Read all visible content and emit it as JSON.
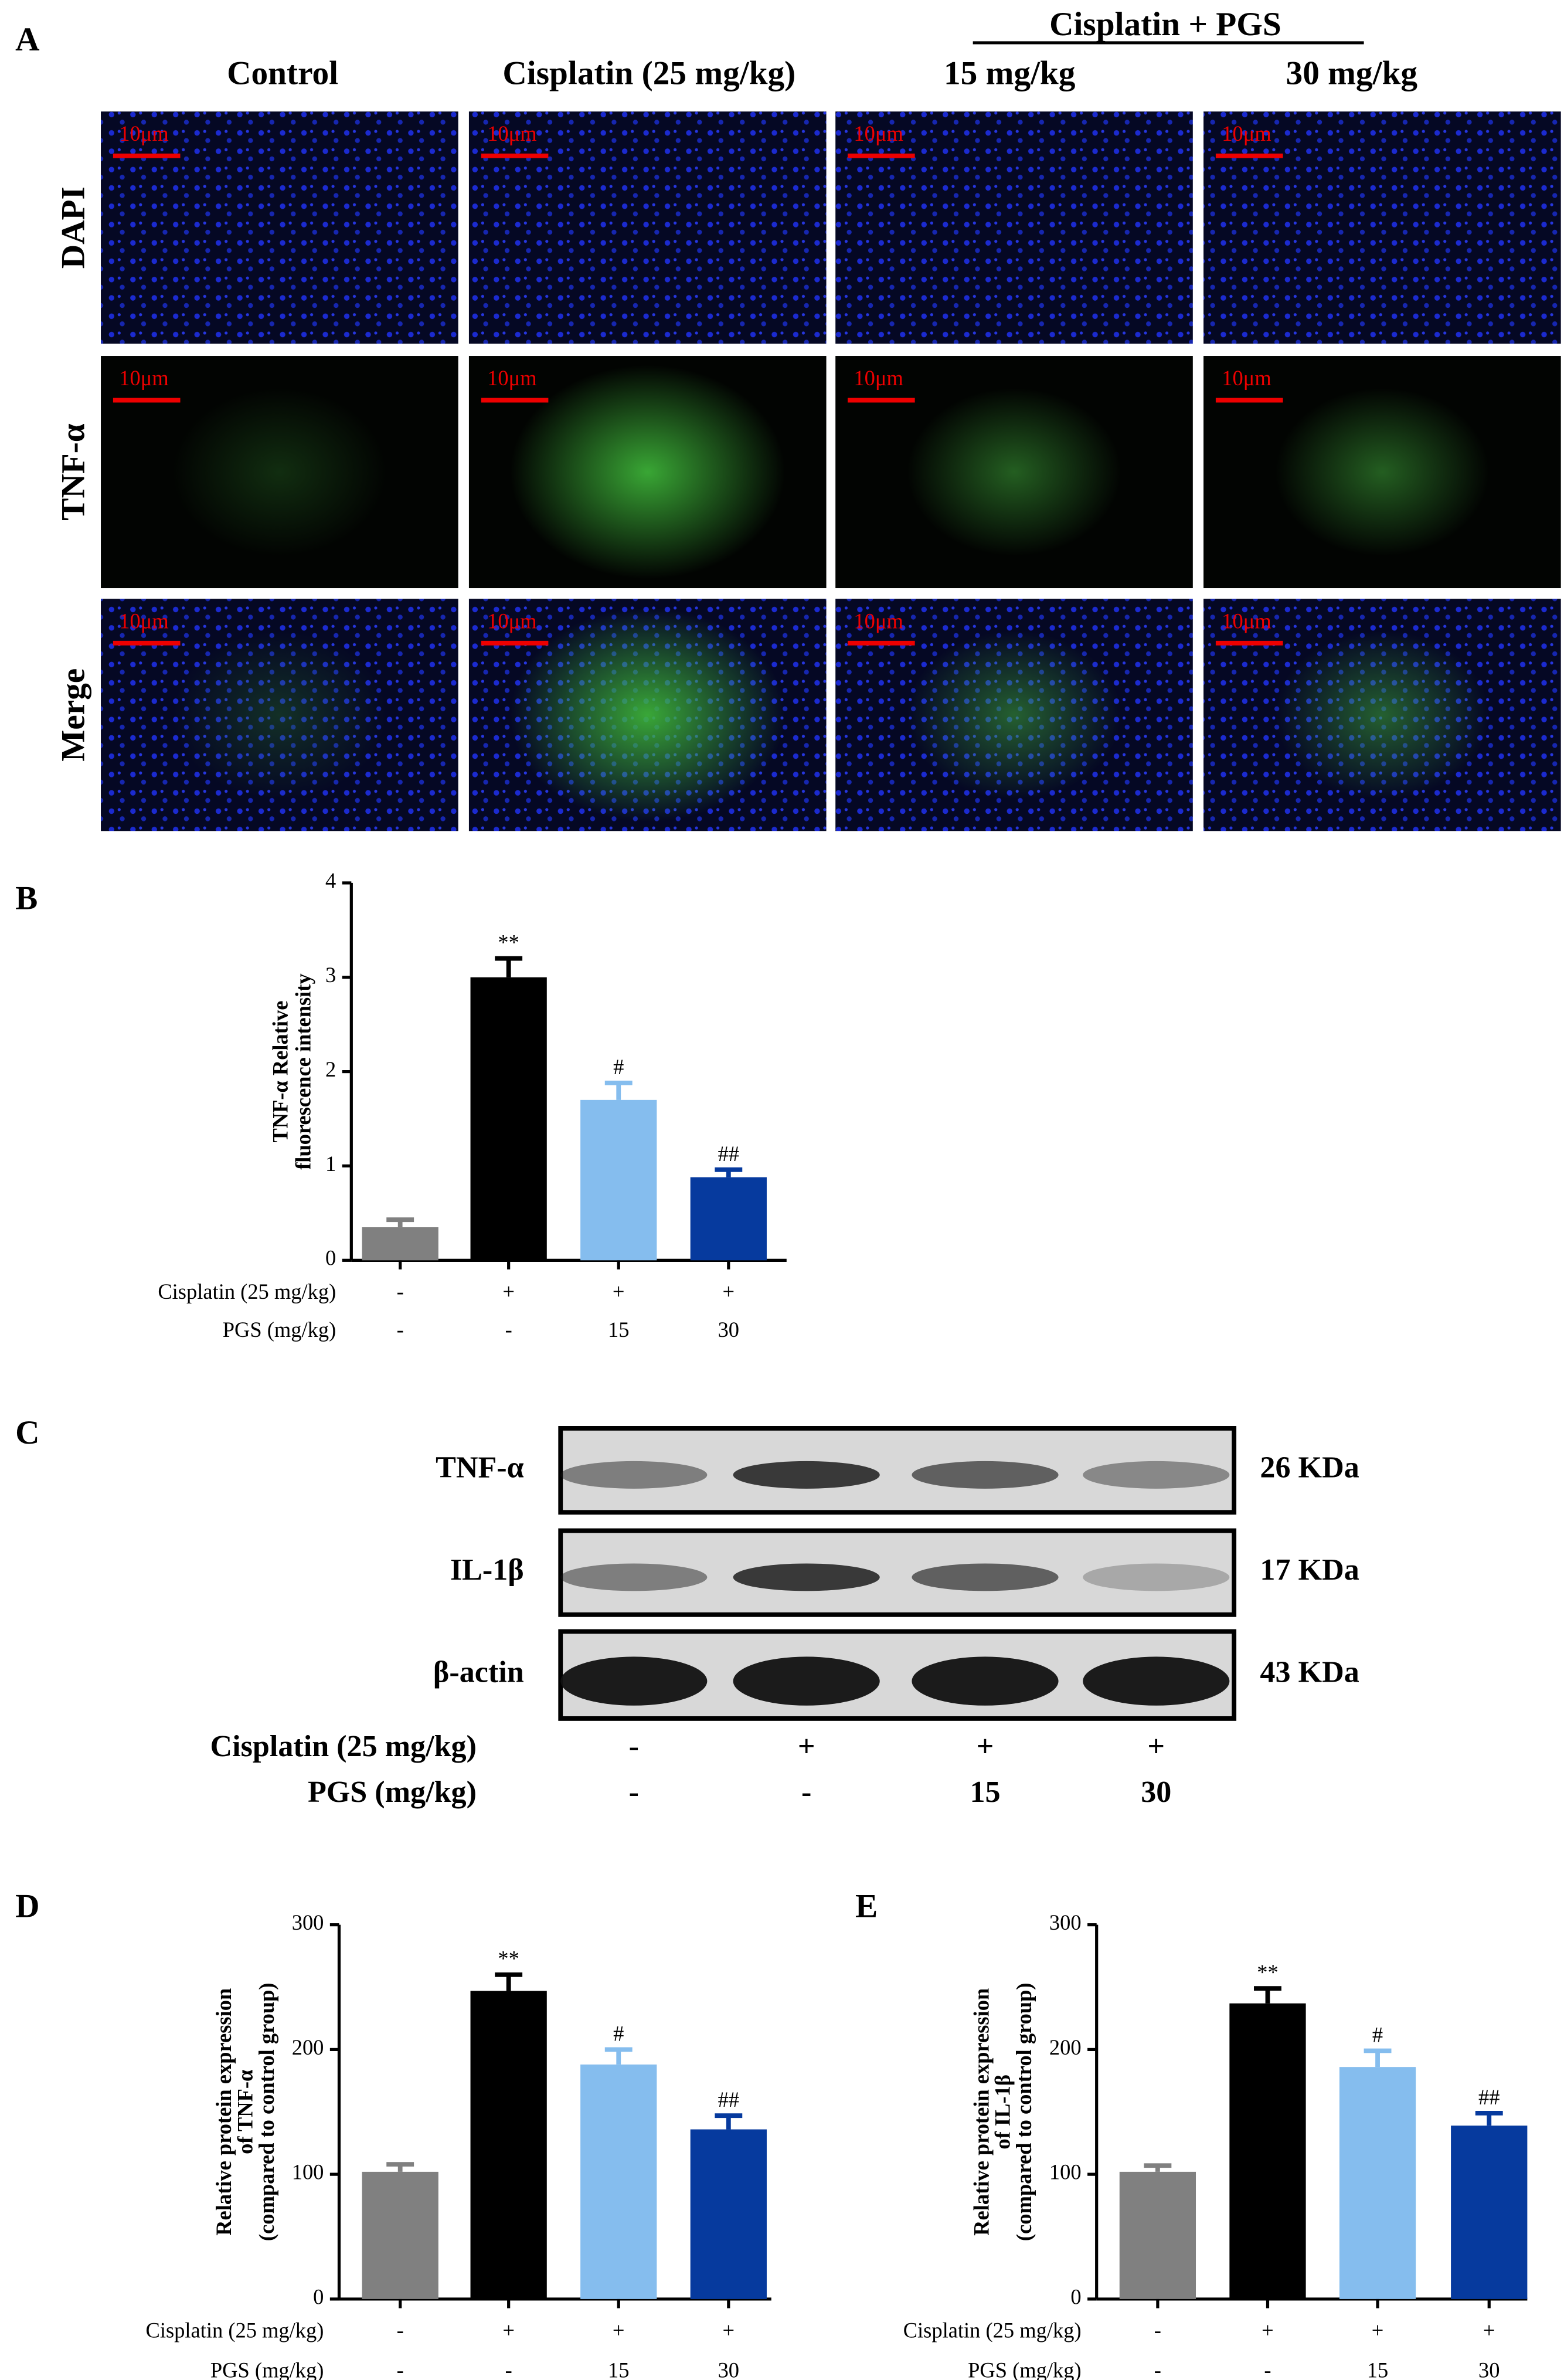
{
  "panel_labels": [
    "A",
    "B",
    "C",
    "D",
    "E"
  ],
  "panel_a": {
    "group_header": "Cisplatin + PGS",
    "columns": [
      "Control",
      "Cisplatin (25 mg/kg)",
      "15 mg/kg",
      "30 mg/kg"
    ],
    "rows": [
      "DAPI",
      "TNF-α",
      "Merge"
    ],
    "scale_bar": "10μm"
  },
  "panel_c": {
    "blots": [
      {
        "label": "TNF-α",
        "size": "26 KDa"
      },
      {
        "label": "IL-1β",
        "size": "17 KDa"
      },
      {
        "label": "β-actin",
        "size": "43 KDa"
      }
    ],
    "treatments": [
      {
        "label": "Cisplatin (25 mg/kg)",
        "values": [
          "-",
          "+",
          "+",
          "+"
        ]
      },
      {
        "label": "PGS (mg/kg)",
        "values": [
          "-",
          "-",
          "15",
          "30"
        ]
      }
    ]
  },
  "chart_data": [
    {
      "type": "bar",
      "y_label": [
        "TNF-α Relative",
        "fluorescence intensity"
      ],
      "ylim": [
        0,
        4
      ],
      "yticks": [
        0,
        1,
        2,
        3,
        4
      ],
      "values": [
        0.35,
        3.0,
        1.7,
        0.88
      ],
      "errors": [
        0.08,
        0.2,
        0.18,
        0.08
      ],
      "significance": [
        null,
        "**",
        "#",
        "##"
      ],
      "colors": [
        "#808080",
        "#000000",
        "#85bdee",
        "#063a9e"
      ],
      "treatments": [
        {
          "label": "Cisplatin (25 mg/kg)",
          "values": [
            "-",
            "+",
            "+",
            "+"
          ]
        },
        {
          "label": "PGS (mg/kg)",
          "values": [
            "-",
            "-",
            "15",
            "30"
          ]
        }
      ]
    },
    {
      "type": "bar",
      "y_label": [
        "Relative protein expression",
        "of  TNF-α",
        "(compared to control group)"
      ],
      "ylim": [
        0,
        300
      ],
      "yticks": [
        0,
        100,
        200,
        300
      ],
      "values": [
        102,
        247,
        188,
        136
      ],
      "errors": [
        6,
        13,
        12,
        11
      ],
      "significance": [
        null,
        "**",
        "#",
        "##"
      ],
      "colors": [
        "#808080",
        "#000000",
        "#85bdee",
        "#063a9e"
      ],
      "treatments": [
        {
          "label": "Cisplatin (25 mg/kg)",
          "values": [
            "-",
            "+",
            "+",
            "+"
          ]
        },
        {
          "label": "PGS (mg/kg)",
          "values": [
            "-",
            "-",
            "15",
            "30"
          ]
        }
      ]
    },
    {
      "type": "bar",
      "y_label": [
        "Relative protein expression",
        "of  IL-1β",
        "(compared to control group)"
      ],
      "ylim": [
        0,
        300
      ],
      "yticks": [
        0,
        100,
        200,
        300
      ],
      "values": [
        102,
        237,
        186,
        139
      ],
      "errors": [
        5,
        12,
        13,
        10
      ],
      "significance": [
        null,
        "**",
        "#",
        "##"
      ],
      "colors": [
        "#808080",
        "#000000",
        "#85bdee",
        "#063a9e"
      ],
      "treatments": [
        {
          "label": "Cisplatin (25 mg/kg)",
          "values": [
            "-",
            "+",
            "+",
            "+"
          ]
        },
        {
          "label": "PGS (mg/kg)",
          "values": [
            "-",
            "-",
            "15",
            "30"
          ]
        }
      ]
    }
  ]
}
